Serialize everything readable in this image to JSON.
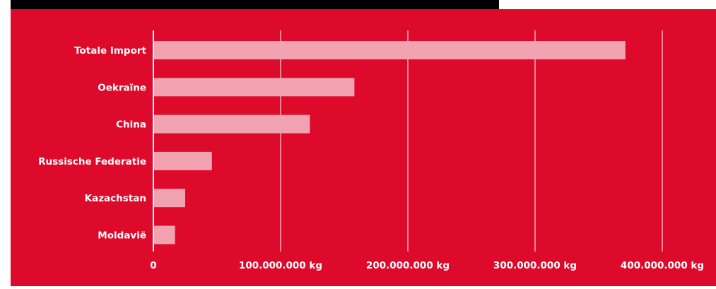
{
  "colors": {
    "background": "#de0a2b",
    "bar": "#f2a3b1",
    "gridline": "#ffffff",
    "text": "#ffffff",
    "top_band": "#000000"
  },
  "chart_data": {
    "type": "bar",
    "orientation": "horizontal",
    "categories": [
      "Totale Import",
      "Oekraïne",
      "China",
      "Russische Federatie",
      "Kazachstan",
      "Moldavië"
    ],
    "values": [
      371000000,
      158000000,
      123000000,
      46000000,
      25000000,
      17000000
    ],
    "xlim": [
      0,
      400000000
    ],
    "x_ticks": [
      0,
      100000000,
      200000000,
      300000000,
      400000000
    ],
    "x_tick_labels": [
      "0",
      "100.000.000 kg",
      "200.000.000 kg",
      "300.000.000 kg",
      "400.000.000 kg"
    ],
    "grid": "vertical",
    "title": "",
    "xlabel": "",
    "ylabel": ""
  }
}
